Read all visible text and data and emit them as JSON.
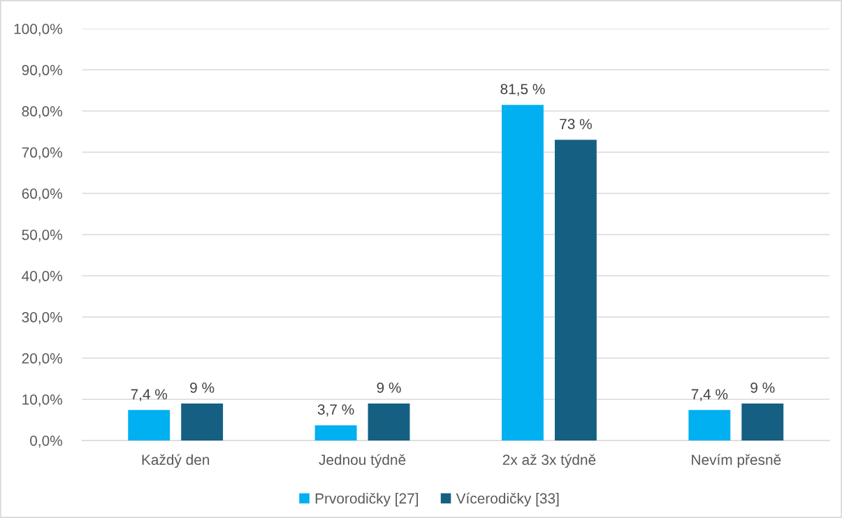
{
  "chart_data": {
    "type": "bar",
    "categories": [
      "Každý den",
      "Jednou týdně",
      "2x až 3x týdně",
      "Nevím přesně"
    ],
    "series": [
      {
        "name": "Prvorodičky [27]",
        "color": "#00b0f0",
        "values": [
          7.4,
          3.7,
          81.5,
          7.4
        ],
        "value_labels": [
          "7,4 %",
          "3,7 %",
          "81,5 %",
          "7,4 %"
        ]
      },
      {
        "name": "Vícerodičky [33]",
        "color": "#156082",
        "values": [
          9,
          9,
          73,
          9
        ],
        "value_labels": [
          "9 %",
          "9 %",
          "73 %",
          "9 %"
        ]
      }
    ],
    "ylim": [
      0,
      100
    ],
    "yticks": [
      {
        "value": 0,
        "label": "0,0%"
      },
      {
        "value": 10,
        "label": "10,0%"
      },
      {
        "value": 20,
        "label": "20,0%"
      },
      {
        "value": 30,
        "label": "30,0%"
      },
      {
        "value": 40,
        "label": "40,0%"
      },
      {
        "value": 50,
        "label": "50,0%"
      },
      {
        "value": 60,
        "label": "60,0%"
      },
      {
        "value": 70,
        "label": "70,0%"
      },
      {
        "value": 80,
        "label": "80,0%"
      },
      {
        "value": 90,
        "label": "90,0%"
      },
      {
        "value": 100,
        "label": "100,0%"
      }
    ],
    "grid": "y",
    "legend": "bottom"
  }
}
